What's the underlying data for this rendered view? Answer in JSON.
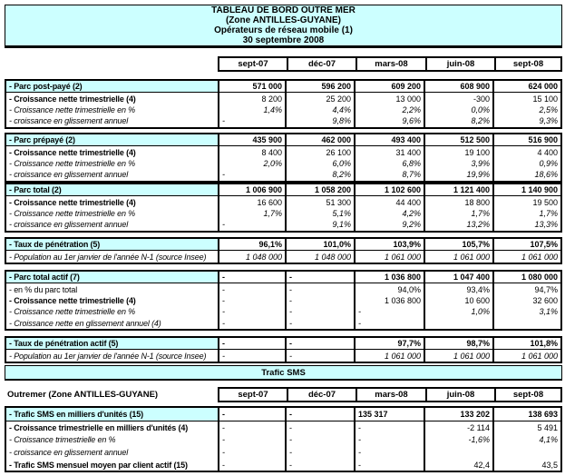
{
  "title": {
    "line1": "TABLEAU DE BORD OUTRE MER",
    "line2": "(Zone ANTILLES-GUYANE)",
    "line3": "Opérateurs de réseau mobile (1)",
    "line4": "30 septembre 2008"
  },
  "columns": [
    "sept-07",
    "déc-07",
    "mars-08",
    "juin-08",
    "sept-08"
  ],
  "colors": {
    "header_bg": "#CCFFFF",
    "border": "#000000",
    "page_bg": "#FFFFFF"
  },
  "blocks": [
    {
      "name": "parc-post-paye",
      "rows": [
        {
          "label": "- Parc post-payé (2)",
          "style": "header",
          "values": [
            "571 000",
            "596 200",
            "609 200",
            "608 900",
            "624 000"
          ]
        },
        {
          "label": "- Croissance nette trimestrielle (4)",
          "style": "bold-label",
          "values": [
            "8 200",
            "25 200",
            "13 000",
            "-300",
            "15 100"
          ]
        },
        {
          "label": "- Croissance nette trimestrielle en %",
          "style": "italic",
          "values": [
            "1,4%",
            "4,4%",
            "2,2%",
            "0,0%",
            "2,5%"
          ]
        },
        {
          "label": "- croissance en glissement annuel",
          "style": "italic",
          "values": [
            "-",
            "9,8%",
            "9,6%",
            "8,2%",
            "9,3%"
          ]
        }
      ]
    },
    {
      "name": "parc-prepaye",
      "rows": [
        {
          "label": "- Parc prépayé (2)",
          "style": "header",
          "values": [
            "435 900",
            "462 000",
            "493 400",
            "512 500",
            "516 900"
          ]
        },
        {
          "label": "- Croissance nette trimestrielle (4)",
          "style": "bold-label",
          "values": [
            "8 400",
            "26 100",
            "31 400",
            "19 100",
            "4 400"
          ]
        },
        {
          "label": "- Croissance nette trimestrielle en %",
          "style": "italic",
          "values": [
            "2,0%",
            "6,0%",
            "6,8%",
            "3,9%",
            "0,9%"
          ]
        },
        {
          "label": "- croissance en glissement annuel",
          "style": "italic",
          "values": [
            "-",
            "8,2%",
            "8,7%",
            "19,9%",
            "18,6%"
          ]
        }
      ]
    },
    {
      "name": "parc-total",
      "rows": [
        {
          "label": "- Parc total (2)",
          "style": "header",
          "values": [
            "1 006 900",
            "1 058 200",
            "1 102 600",
            "1 121 400",
            "1 140 900"
          ]
        },
        {
          "label": "- Croissance nette trimestrielle (4)",
          "style": "bold-label",
          "values": [
            "16 600",
            "51 300",
            "44 400",
            "18 800",
            "19 500"
          ]
        },
        {
          "label": "- Croissance nette trimestrielle en %",
          "style": "italic",
          "values": [
            "1,7%",
            "5,1%",
            "4,2%",
            "1,7%",
            "1,7%"
          ]
        },
        {
          "label": "- croissance en glissement annuel",
          "style": "italic",
          "values": [
            "-",
            "9,1%",
            "9,2%",
            "13,2%",
            "13,3%"
          ]
        }
      ]
    },
    {
      "name": "taux-penetration",
      "rows": [
        {
          "label": "- Taux de pénétration (5)",
          "style": "header",
          "values": [
            "96,1%",
            "101,0%",
            "103,9%",
            "105,7%",
            "107,5%"
          ]
        },
        {
          "label": "- Population au 1er janvier de l'année N-1 (source Insee)",
          "style": "italic",
          "values": [
            "1 048 000",
            "1 048 000",
            "1 061 000",
            "1 061 000",
            "1 061 000"
          ]
        }
      ]
    },
    {
      "name": "parc-total-actif",
      "rows": [
        {
          "label": "- Parc total actif (7)",
          "style": "header",
          "values": [
            "-",
            "-",
            "1 036 800",
            "1 047 400",
            "1 080 000"
          ]
        },
        {
          "label": "- en % du parc total",
          "style": "plain",
          "values": [
            "-",
            "-",
            "94,0%",
            "93,4%",
            "94,7%"
          ]
        },
        {
          "label": "- Croissance nette trimestrielle (4)",
          "style": "bold-label",
          "values": [
            "-",
            "-",
            "1 036 800",
            "10 600",
            "32 600"
          ]
        },
        {
          "label": "- Croissance nette trimestrielle en %",
          "style": "italic",
          "values": [
            "-",
            "-",
            "-",
            "1,0%",
            "3,1%"
          ]
        },
        {
          "label": "- Croissance nette en glissement annuel (4)",
          "style": "italic",
          "values": [
            "-",
            "-",
            "-",
            "",
            ""
          ]
        }
      ]
    },
    {
      "name": "taux-penetration-actif",
      "rows": [
        {
          "label": "- Taux de pénétration actif (5)",
          "style": "header",
          "values": [
            "-",
            "-",
            "97,7%",
            "98,7%",
            "101,8%"
          ]
        },
        {
          "label": "- Population au 1er janvier de l'année N-1 (source Insee)",
          "style": "italic",
          "values": [
            "-",
            "-",
            "1 061 000",
            "1 061 000",
            "1 061 000"
          ]
        }
      ]
    }
  ],
  "sms_section": {
    "band_title": "Trafic SMS",
    "zone_label": "Outremer (Zone ANTILLES-GUYANE)",
    "block": {
      "name": "trafic-sms",
      "rows": [
        {
          "label": "- Trafic SMS en milliers d'unités (15)",
          "style": "header",
          "values": [
            "-",
            "-",
            "135 317",
            "133 202",
            "138 693"
          ],
          "aligns": [
            null,
            null,
            "left",
            null,
            null
          ]
        },
        {
          "label": "- Croissance trimestrielle en milliers d'unités (4)",
          "style": "bold-label",
          "values": [
            "-",
            "-",
            "-",
            "-2 114",
            "5 491"
          ]
        },
        {
          "label": "- Croissance trimestrielle en %",
          "style": "italic",
          "values": [
            "-",
            "-",
            "-",
            "-1,6%",
            "4,1%"
          ]
        },
        {
          "label": "- croissance en glissement annuel",
          "style": "italic",
          "values": [
            "-",
            "-",
            "-",
            "",
            ""
          ]
        },
        {
          "label": "- Trafic SMS mensuel moyen par client actif (15)",
          "style": "bold-label",
          "values": [
            "-",
            "-",
            "-",
            "42,4",
            "43,5"
          ]
        }
      ]
    }
  }
}
